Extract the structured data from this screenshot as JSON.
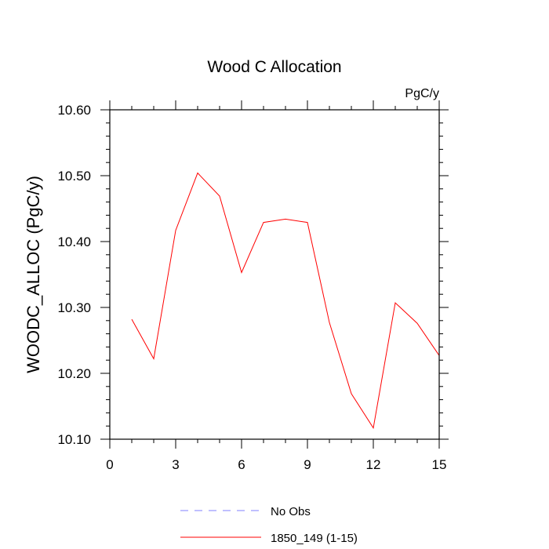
{
  "chart_data": {
    "type": "line",
    "title": "Wood C Allocation",
    "units_label": "PgC/y",
    "xlabel": "",
    "ylabel": "WOODC_ALLOC  (PgC/y)",
    "xlim": [
      0,
      15
    ],
    "ylim": [
      10.1,
      10.6
    ],
    "x_ticks": [
      0,
      3,
      6,
      9,
      12,
      15
    ],
    "x_tick_labels": [
      "0",
      "3",
      "6",
      "9",
      "12",
      "15"
    ],
    "y_ticks": [
      10.1,
      10.2,
      10.3,
      10.4,
      10.5,
      10.6
    ],
    "y_tick_labels": [
      "10.10",
      "10.20",
      "10.30",
      "10.40",
      "10.50",
      "10.60"
    ],
    "grid": false,
    "legend_position": "bottom",
    "series": [
      {
        "name": "No Obs",
        "color": "#8080ff",
        "dash": "dashed",
        "x": [],
        "y": []
      },
      {
        "name": "1850_149 (1-15)",
        "color": "#ff0000",
        "dash": "solid",
        "x": [
          1,
          2,
          3,
          4,
          5,
          6,
          7,
          8,
          9,
          10,
          11,
          12,
          13,
          14,
          15
        ],
        "y": [
          10.282,
          10.222,
          10.417,
          10.504,
          10.469,
          10.353,
          10.429,
          10.434,
          10.429,
          10.277,
          10.169,
          10.117,
          10.307,
          10.276,
          10.227
        ]
      }
    ]
  }
}
